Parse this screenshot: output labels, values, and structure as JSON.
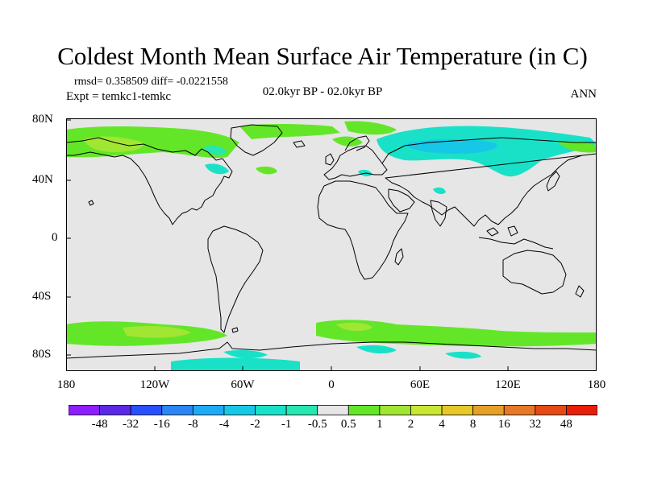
{
  "title": "Coldest Month Mean Surface Air Temperature (in C)",
  "stats": {
    "text": "rmsd= 0.358509 diff= -0.0221558"
  },
  "experiment": {
    "text": "Expt = temkc1-temkc"
  },
  "period": {
    "text": "02.0kyr BP - 02.0kyr BP"
  },
  "season": {
    "text": "ANN"
  },
  "map": {
    "y_ticks": [
      "80N",
      "40N",
      "0",
      "40S",
      "80S"
    ],
    "x_ticks": [
      "180",
      "120W",
      "60W",
      "0",
      "60E",
      "120E",
      "180"
    ],
    "background_color": "#e6e6e6"
  },
  "colorbar": {
    "labels": [
      "-48",
      "-32",
      "-16",
      "-8",
      "-4",
      "-2",
      "-1",
      "-0.5",
      "0.5",
      "1",
      "2",
      "4",
      "8",
      "16",
      "32",
      "48"
    ],
    "colors": [
      "#8c1eff",
      "#5a28e6",
      "#2850ff",
      "#2a86f0",
      "#1eaaf5",
      "#17c8e6",
      "#19e1c8",
      "#28e6af",
      "#e6e6e6",
      "#64e628",
      "#a0e632",
      "#c8e632",
      "#e6c828",
      "#e6a028",
      "#e67828",
      "#e64a14",
      "#e61e0a"
    ]
  }
}
